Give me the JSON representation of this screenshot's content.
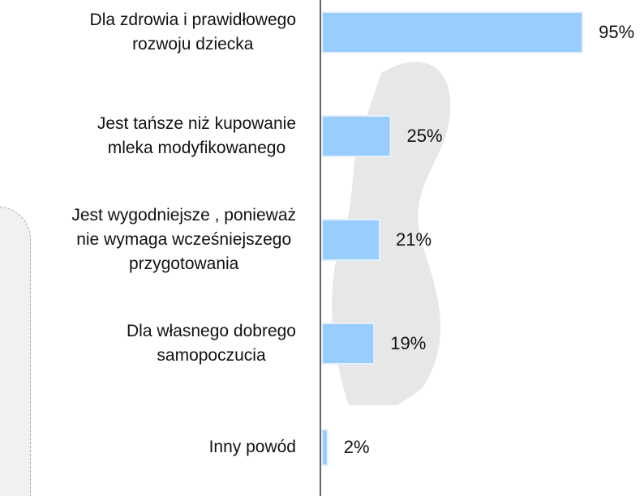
{
  "chart_data": {
    "type": "hbar",
    "categories": [
      "Dla zdrowia i prawidłowego\nrozwoju dziecka",
      "Jest tańsze niż kupowanie\nmleka modyfikowanego",
      "Jest wygodniejsze , ponieważ\nnie wymaga wcześniejszego\nprzygotowania",
      "Dla własnego dobrego\nsamopoczucia",
      "Inny powód"
    ],
    "values": [
      95,
      25,
      21,
      19,
      2
    ],
    "value_labels": [
      "95%",
      "25%",
      "21%",
      "19%",
      "2%"
    ],
    "color": "#99ccff",
    "xlim": [
      0,
      100
    ]
  }
}
